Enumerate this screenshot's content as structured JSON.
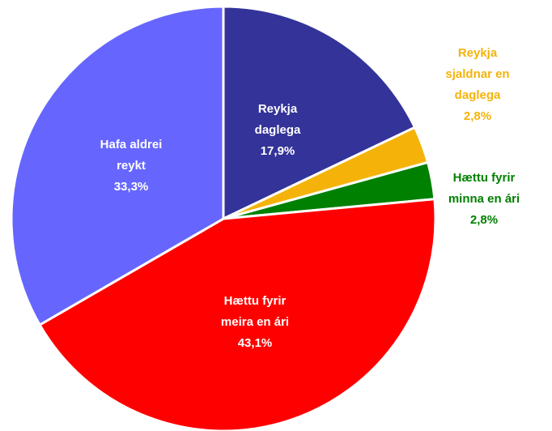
{
  "chart_data": {
    "type": "pie",
    "categories": [
      "Reykja daglega",
      "Reykja sjaldnar en daglega",
      "Hættu fyrir minna en ári",
      "Hættu fyrir meira en ári",
      "Hafa aldrei reykt"
    ],
    "values": [
      17.9,
      2.8,
      2.8,
      43.1,
      33.3
    ],
    "value_labels": [
      "17,9%",
      "2,8%",
      "2,8%",
      "43,1%",
      "33,3%"
    ],
    "colors": [
      "#333399",
      "#f5b30a",
      "#008000",
      "#ff0000",
      "#6666ff"
    ]
  }
}
